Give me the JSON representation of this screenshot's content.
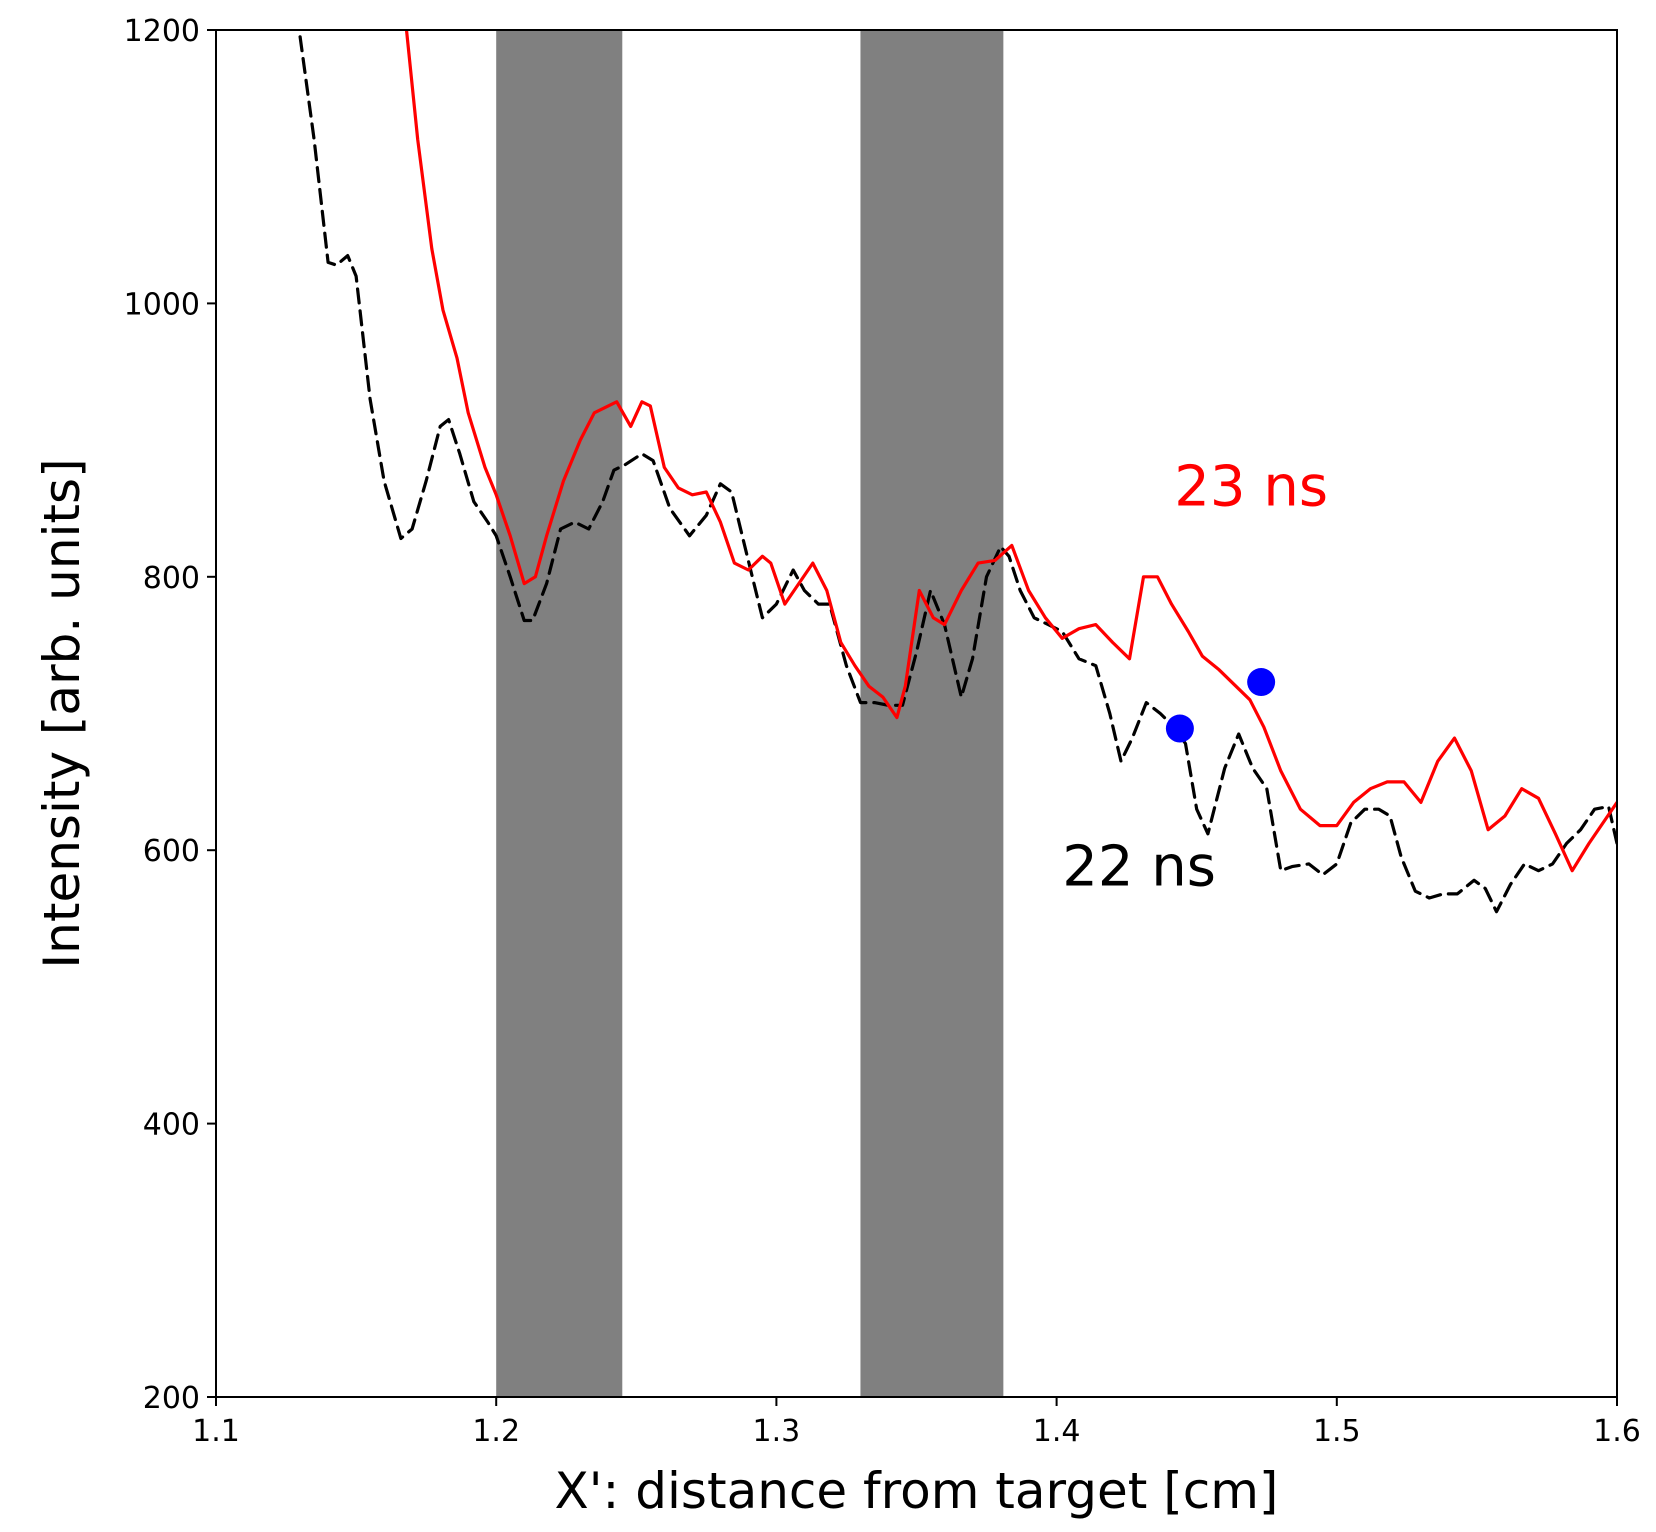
{
  "chart_data": {
    "type": "line",
    "title": "",
    "xlabel": "X': distance from target [cm]",
    "ylabel": "Intensity [arb. units]",
    "xlim": [
      1.1,
      1.6
    ],
    "ylim": [
      200,
      1200
    ],
    "grid": false,
    "x_ticks": [
      1.1,
      1.2,
      1.3,
      1.4,
      1.5,
      1.6
    ],
    "x_tick_labels": [
      "1.1",
      "1.2",
      "1.3",
      "1.4",
      "1.5",
      "1.6"
    ],
    "y_ticks": [
      200,
      400,
      600,
      800,
      1000,
      1200
    ],
    "y_tick_labels": [
      "200",
      "400",
      "600",
      "800",
      "1000",
      "1200"
    ],
    "shaded_regions": [
      {
        "x0": 1.2,
        "x1": 1.245,
        "color": "#808080"
      },
      {
        "x0": 1.33,
        "x1": 1.381,
        "color": "#808080"
      }
    ],
    "series": [
      {
        "style": "dashed",
        "color": "#000000",
        "x": [
          1.13,
          1.135,
          1.14,
          1.143,
          1.147,
          1.15,
          1.155,
          1.16,
          1.166,
          1.17,
          1.175,
          1.18,
          1.183,
          1.187,
          1.192,
          1.197,
          1.2,
          1.205,
          1.21,
          1.213,
          1.218,
          1.223,
          1.228,
          1.233,
          1.238,
          1.242,
          1.246,
          1.252,
          1.256,
          1.262,
          1.269,
          1.275,
          1.28,
          1.284,
          1.289,
          1.295,
          1.3,
          1.306,
          1.31,
          1.315,
          1.319,
          1.325,
          1.33,
          1.335,
          1.34,
          1.345,
          1.35,
          1.355,
          1.36,
          1.366,
          1.37,
          1.375,
          1.38,
          1.383,
          1.387,
          1.392,
          1.397,
          1.402,
          1.408,
          1.414,
          1.419,
          1.423,
          1.427,
          1.432,
          1.437,
          1.442,
          1.446,
          1.45,
          1.454,
          1.46,
          1.465,
          1.47,
          1.475,
          1.48,
          1.484,
          1.49,
          1.495,
          1.5,
          1.505,
          1.51,
          1.515,
          1.519,
          1.523,
          1.528,
          1.533,
          1.538,
          1.543,
          1.549,
          1.553,
          1.557,
          1.562,
          1.567,
          1.572,
          1.577,
          1.582,
          1.587,
          1.592,
          1.597,
          1.6
        ],
        "y": [
          1195,
          1120,
          1030,
          1028,
          1035,
          1020,
          930,
          870,
          828,
          835,
          870,
          910,
          915,
          890,
          855,
          840,
          830,
          800,
          768,
          768,
          795,
          835,
          840,
          835,
          855,
          878,
          882,
          890,
          885,
          850,
          830,
          845,
          868,
          862,
          820,
          770,
          780,
          805,
          790,
          780,
          780,
          735,
          708,
          708,
          706,
          706,
          745,
          790,
          765,
          712,
          740,
          800,
          822,
          815,
          790,
          770,
          765,
          760,
          740,
          735,
          700,
          665,
          682,
          708,
          700,
          690,
          678,
          630,
          612,
          660,
          685,
          660,
          645,
          585,
          588,
          590,
          582,
          590,
          620,
          630,
          630,
          625,
          595,
          570,
          565,
          568,
          568,
          578,
          572,
          555,
          575,
          590,
          585,
          590,
          605,
          615,
          630,
          632,
          605
        ]
      },
      {
        "style": "solid",
        "color": "#ff0000",
        "x": [
          1.168,
          1.172,
          1.177,
          1.181,
          1.186,
          1.19,
          1.196,
          1.2,
          1.205,
          1.21,
          1.214,
          1.218,
          1.224,
          1.23,
          1.235,
          1.24,
          1.243,
          1.248,
          1.252,
          1.255,
          1.26,
          1.265,
          1.27,
          1.275,
          1.28,
          1.285,
          1.29,
          1.295,
          1.298,
          1.303,
          1.308,
          1.313,
          1.318,
          1.323,
          1.328,
          1.333,
          1.338,
          1.343,
          1.346,
          1.351,
          1.356,
          1.36,
          1.366,
          1.372,
          1.378,
          1.384,
          1.39,
          1.396,
          1.402,
          1.408,
          1.414,
          1.42,
          1.426,
          1.431,
          1.436,
          1.441,
          1.447,
          1.452,
          1.458,
          1.464,
          1.469,
          1.474,
          1.48,
          1.487,
          1.494,
          1.5,
          1.506,
          1.512,
          1.518,
          1.524,
          1.53,
          1.536,
          1.542,
          1.548,
          1.554,
          1.56,
          1.566,
          1.572,
          1.578,
          1.584,
          1.59,
          1.595,
          1.6
        ],
        "y": [
          1200,
          1120,
          1040,
          995,
          960,
          920,
          880,
          860,
          830,
          795,
          800,
          830,
          870,
          900,
          920,
          925,
          928,
          910,
          928,
          925,
          880,
          865,
          860,
          862,
          840,
          810,
          805,
          815,
          810,
          780,
          795,
          810,
          790,
          752,
          735,
          720,
          712,
          697,
          720,
          790,
          770,
          765,
          790,
          810,
          812,
          823,
          790,
          770,
          755,
          762,
          765,
          752,
          740,
          800,
          800,
          780,
          760,
          742,
          732,
          720,
          710,
          690,
          658,
          630,
          618,
          618,
          635,
          645,
          650,
          650,
          635,
          665,
          682,
          658,
          615,
          625,
          645,
          638,
          612,
          585,
          605,
          620,
          635
        ]
      }
    ],
    "markers": [
      {
        "x": 1.444,
        "y": 689,
        "color": "#0000ff"
      },
      {
        "x": 1.473,
        "y": 723,
        "color": "#0000ff"
      }
    ],
    "annotations": [
      {
        "text": "23 ns",
        "x": 1.442,
        "y": 852,
        "color": "#ff0000"
      },
      {
        "text": "22 ns",
        "x": 1.402,
        "y": 574,
        "color": "#000000"
      }
    ]
  }
}
